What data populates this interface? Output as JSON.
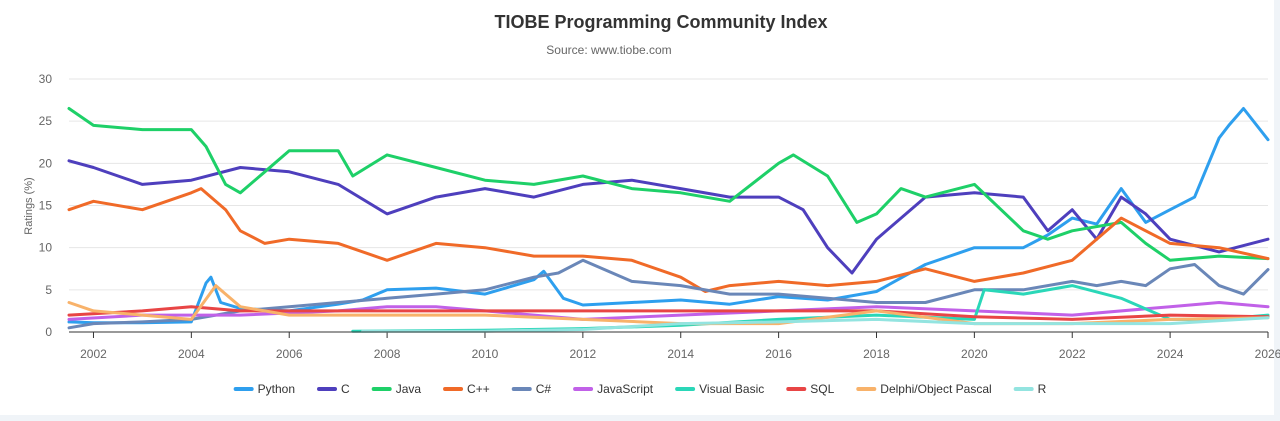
{
  "chart_data": {
    "type": "line",
    "title": "TIOBE Programming Community Index",
    "subtitle": "Source: www.tiobe.com",
    "ylabel": "Ratings (%)",
    "xlabel": "",
    "xlim": [
      2001.5,
      2026.0
    ],
    "ylim": [
      0,
      30
    ],
    "x_ticks": [
      2002,
      2004,
      2006,
      2008,
      2010,
      2012,
      2014,
      2016,
      2018,
      2020,
      2022,
      2024,
      2026
    ],
    "y_ticks": [
      0,
      5,
      10,
      15,
      20,
      25,
      30
    ],
    "grid": "horizontal",
    "legend_position": "bottom",
    "series": [
      {
        "name": "Python",
        "color": "#2e9fee",
        "x": [
          2001.5,
          2002,
          2003,
          2004,
          2004.3,
          2004.4,
          2004.6,
          2005,
          2006,
          2007,
          2007.5,
          2008,
          2009,
          2010,
          2011,
          2011.2,
          2011.6,
          2012,
          2013,
          2014,
          2015,
          2016,
          2017,
          2018,
          2019,
          2020,
          2021,
          2021.5,
          2022,
          2022.5,
          2023,
          2023.5,
          2024,
          2024.5,
          2025,
          2025.2,
          2025.5,
          2026
        ],
        "y": [
          1.2,
          1.1,
          1.1,
          1.2,
          5.8,
          6.5,
          3.5,
          2.8,
          2.5,
          3.3,
          3.8,
          5.0,
          5.2,
          4.5,
          6.2,
          7.2,
          4.0,
          3.2,
          3.5,
          3.8,
          3.3,
          4.2,
          3.8,
          4.8,
          8.0,
          10.0,
          10.0,
          11.5,
          13.5,
          12.8,
          17.0,
          13.0,
          14.5,
          16.0,
          23.0,
          24.5,
          26.5,
          22.8
        ]
      },
      {
        "name": "C",
        "color": "#4e3fbd",
        "x": [
          2001.5,
          2002,
          2003,
          2004,
          2005,
          2006,
          2007,
          2008,
          2009,
          2010,
          2011,
          2012,
          2013,
          2014,
          2015,
          2016,
          2016.5,
          2017,
          2017.5,
          2018,
          2019,
          2020,
          2021,
          2021.5,
          2022,
          2022.5,
          2023,
          2023.5,
          2024,
          2025,
          2026
        ],
        "y": [
          20.3,
          19.5,
          17.5,
          18.0,
          19.5,
          19.0,
          17.5,
          14.0,
          16.0,
          17.0,
          16.0,
          17.5,
          18.0,
          17.0,
          16.0,
          16.0,
          14.5,
          10.0,
          7.0,
          11.0,
          16.0,
          16.5,
          16.0,
          12.0,
          14.5,
          11.0,
          16.0,
          14.0,
          11.0,
          9.5,
          11.0
        ]
      },
      {
        "name": "Java",
        "color": "#1ed068",
        "x": [
          2001.5,
          2002,
          2003,
          2004,
          2004.3,
          2004.7,
          2005,
          2005.5,
          2006,
          2007,
          2007.3,
          2008,
          2009,
          2010,
          2011,
          2012,
          2013,
          2014,
          2015,
          2016,
          2016.3,
          2017,
          2017.6,
          2018,
          2018.5,
          2019,
          2020,
          2021,
          2021.5,
          2022,
          2023,
          2023.5,
          2024,
          2025,
          2026
        ],
        "y": [
          26.5,
          24.5,
          24.0,
          24.0,
          22.0,
          17.5,
          16.5,
          19.0,
          21.5,
          21.5,
          18.5,
          21.0,
          19.5,
          18.0,
          17.5,
          18.5,
          17.0,
          16.5,
          15.5,
          20.0,
          21.0,
          18.5,
          13.0,
          14.0,
          17.0,
          16.0,
          17.5,
          12.0,
          11.0,
          12.0,
          13.0,
          10.5,
          8.5,
          9.0,
          8.7
        ]
      },
      {
        "name": "C++",
        "color": "#f06a28",
        "x": [
          2001.5,
          2002,
          2003,
          2004,
          2004.2,
          2004.7,
          2005,
          2005.5,
          2006,
          2007,
          2008,
          2009,
          2010,
          2011,
          2012,
          2013,
          2014,
          2014.5,
          2015,
          2016,
          2017,
          2018,
          2019,
          2020,
          2021,
          2022,
          2023,
          2023.5,
          2024,
          2025,
          2026
        ],
        "y": [
          14.5,
          15.5,
          14.5,
          16.5,
          17.0,
          14.5,
          12.0,
          10.5,
          11.0,
          10.5,
          8.5,
          10.5,
          10.0,
          9.0,
          9.0,
          8.5,
          6.5,
          4.8,
          5.5,
          6.0,
          5.5,
          6.0,
          7.5,
          6.0,
          7.0,
          8.5,
          13.5,
          12.0,
          10.5,
          10.0,
          8.7
        ]
      },
      {
        "name": "C#",
        "color": "#6a87b8",
        "x": [
          2001.5,
          2002,
          2003,
          2004,
          2005,
          2006,
          2007,
          2008,
          2009,
          2010,
          2011,
          2011.5,
          2012,
          2013,
          2014,
          2015,
          2016,
          2017,
          2018,
          2019,
          2020,
          2021,
          2022,
          2022.5,
          2023,
          2023.5,
          2024,
          2024.5,
          2025,
          2025.5,
          2026
        ],
        "y": [
          0.5,
          1.0,
          1.2,
          1.5,
          2.5,
          3.0,
          3.5,
          4.0,
          4.5,
          5.0,
          6.5,
          7.0,
          8.5,
          6.0,
          5.5,
          4.5,
          4.5,
          4.0,
          3.5,
          3.5,
          5.0,
          5.0,
          6.0,
          5.5,
          6.0,
          5.5,
          7.5,
          8.0,
          5.5,
          4.5,
          7.4
        ]
      },
      {
        "name": "JavaScript",
        "color": "#c161e8",
        "x": [
          2001.5,
          2003,
          2005,
          2007,
          2008,
          2009,
          2010,
          2012,
          2014,
          2016,
          2018,
          2020,
          2022,
          2024,
          2025,
          2026
        ],
        "y": [
          1.5,
          2.0,
          2.0,
          2.5,
          3.0,
          3.0,
          2.5,
          1.5,
          2.0,
          2.5,
          3.0,
          2.5,
          2.0,
          3.0,
          3.5,
          3.0
        ]
      },
      {
        "name": "Visual Basic",
        "color": "#2ad7b8",
        "x": [
          2007.3,
          2010,
          2012,
          2014,
          2016,
          2018,
          2020,
          2020.2,
          2021,
          2022,
          2023,
          2024,
          2025,
          2026
        ],
        "y": [
          0.1,
          0.2,
          0.4,
          0.8,
          1.5,
          2.0,
          1.5,
          5.0,
          4.5,
          5.5,
          4.0,
          1.5,
          1.5,
          2.0
        ]
      },
      {
        "name": "SQL",
        "color": "#e84545",
        "x": [
          2001.5,
          2003,
          2004,
          2005,
          2008,
          2012,
          2016,
          2018,
          2020,
          2022,
          2024,
          2026
        ],
        "y": [
          2.0,
          2.5,
          3.0,
          2.5,
          2.5,
          2.5,
          2.5,
          2.5,
          1.8,
          1.5,
          2.0,
          1.8
        ]
      },
      {
        "name": "Delphi/Object Pascal",
        "color": "#f8b26a",
        "x": [
          2001.5,
          2002,
          2003,
          2004,
          2004.5,
          2004.7,
          2005,
          2006,
          2008,
          2010,
          2012,
          2014,
          2016,
          2018,
          2020,
          2022,
          2024,
          2026
        ],
        "y": [
          3.5,
          2.5,
          2.0,
          1.5,
          5.5,
          4.5,
          3.0,
          2.0,
          2.0,
          2.0,
          1.5,
          1.0,
          1.0,
          2.5,
          1.0,
          1.0,
          1.5,
          1.7
        ]
      },
      {
        "name": "R",
        "color": "#93e4e0",
        "x": [
          2007.5,
          2010,
          2012,
          2014,
          2016,
          2018,
          2020,
          2022,
          2024,
          2026
        ],
        "y": [
          0.1,
          0.1,
          0.3,
          1.0,
          1.2,
          1.5,
          1.0,
          1.0,
          1.0,
          1.7
        ]
      }
    ]
  }
}
